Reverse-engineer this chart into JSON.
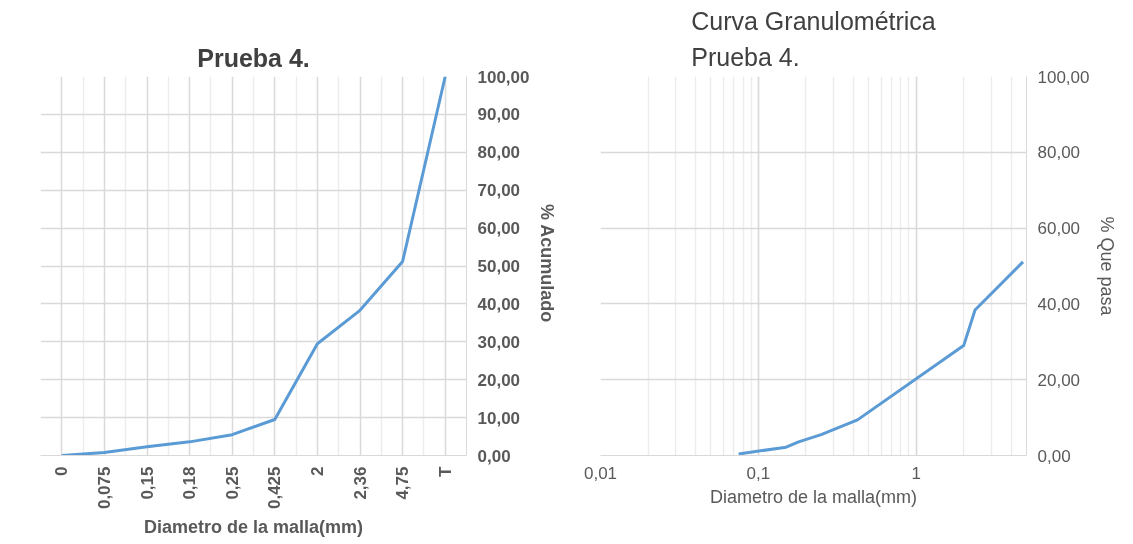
{
  "chart_data": [
    {
      "type": "line",
      "title": "Prueba 4.",
      "xlabel": "Diametro de la malla(mm)",
      "ylabel": "%  Acumulado",
      "categories": [
        "0",
        "0,075",
        "0,15",
        "0,18",
        "0,25",
        "0,425",
        "2",
        "2,36",
        "4,75",
        "T"
      ],
      "series": [
        {
          "color": "#5b9bd5",
          "values": [
            0,
            0.8,
            2.3,
            3.6,
            5.5,
            9.5,
            29.5,
            38.3,
            51.2,
            100
          ]
        }
      ],
      "ylim": [
        0,
        100
      ],
      "yticks": [
        {
          "value": 0,
          "label": "0,00"
        },
        {
          "value": 10,
          "label": "10,00"
        },
        {
          "value": 20,
          "label": "20,00"
        },
        {
          "value": 30,
          "label": "30,00"
        },
        {
          "value": 40,
          "label": "40,00"
        },
        {
          "value": 50,
          "label": "50,00"
        },
        {
          "value": 60,
          "label": "60,00"
        },
        {
          "value": 70,
          "label": "70,00"
        },
        {
          "value": 80,
          "label": "80,00"
        },
        {
          "value": 90,
          "label": "90,00"
        },
        {
          "value": 100,
          "label": "100,00"
        }
      ],
      "grid": true,
      "marker": "none",
      "line_style": "solid"
    },
    {
      "type": "line",
      "title": "Curva Granulométrica\nPrueba 4.",
      "xlabel": "Diametro de la malla(mm)",
      "ylabel": "% Que pasa",
      "x": [
        0.075,
        0.15,
        0.18,
        0.25,
        0.425,
        2,
        2.36,
        4.75
      ],
      "series": [
        {
          "color": "#5b9bd5",
          "values": [
            0.4,
            2.2,
            3.6,
            5.5,
            9.4,
            29,
            38.4,
            51.1
          ]
        }
      ],
      "xlim": [
        0.01,
        5
      ],
      "xticks": [
        {
          "value": 0.01,
          "label": "0,01"
        },
        {
          "value": 0.1,
          "label": "0,1"
        },
        1
      ],
      "ylim": [
        0,
        100
      ],
      "yticks": [
        {
          "value": 0,
          "label": "0,00"
        },
        {
          "value": 20,
          "label": "20,00"
        },
        {
          "value": 40,
          "label": "40,00"
        },
        {
          "value": 60,
          "label": "60,00"
        },
        {
          "value": 80,
          "label": "80,00"
        },
        {
          "value": 100,
          "label": "100,00"
        }
      ],
      "log": "x",
      "grid": true,
      "marker": "none",
      "line_style": "solid"
    }
  ]
}
